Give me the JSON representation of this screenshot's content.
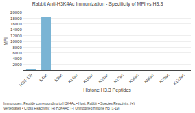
{
  "chart_data": {
    "type": "bar",
    "title": "Rabbit Anti-H3K4Ac Immunization - Specificity of MFI vs H3.3",
    "x_label": "Histone H3.3 Peptides",
    "y_label": "MFI",
    "annotations": [
      "Immunogen: Peptide corresponding to H3K4Ac • Host: Rabbit • Species Reactivity: (+) Vertebrates • Cross Reactivity: (+) H3K4Ac; (-) Unmodified histone H3 (1-19)"
    ],
    "categories": [
      "H3(1-19)",
      "K4ac",
      "K9ac",
      "K14ac",
      "K18ac",
      "K23ac",
      "K27ac",
      "K36ac",
      "K56ac",
      "K79ac",
      "K122ac"
    ],
    "values": [
      380,
      18500,
      20,
      20,
      30,
      20,
      20,
      20,
      20,
      100,
      150
    ],
    "color": "#7ab4d4",
    "ylim": [
      0,
      20000
    ],
    "yticks": [
      2000,
      4000,
      6000,
      8000,
      10000,
      12000,
      14000,
      16000,
      18000,
      20000
    ],
    "grid": true
  }
}
